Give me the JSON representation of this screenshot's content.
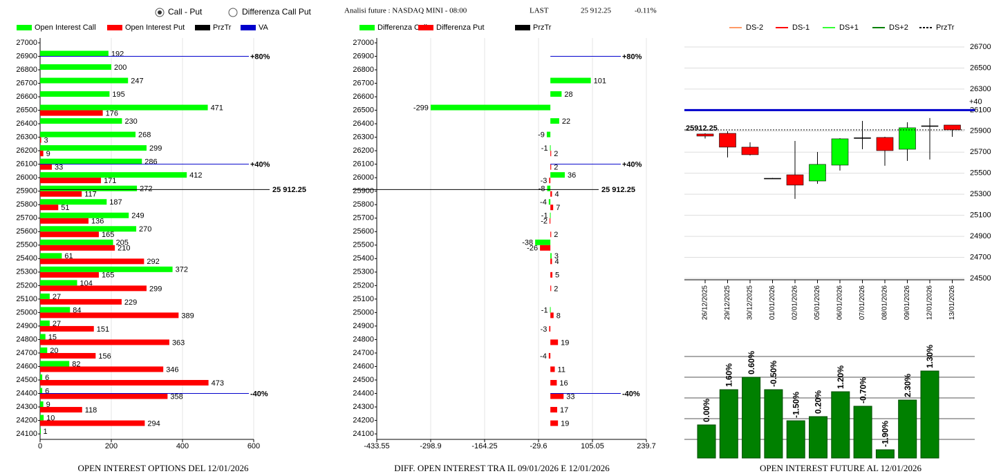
{
  "header": {
    "options": [
      "Call - Put",
      "Differenza Call Put"
    ],
    "selected": 0,
    "title": "Analisi future : NASDAQ MINI - 08:00",
    "last_label": "LAST",
    "last": "25 912.25",
    "change": "-0.11%"
  },
  "chart_data": [
    {
      "type": "hbar",
      "title": "OPEN INTEREST OPTIONS DEL 12/01/2026",
      "categories": [
        27000,
        26900,
        26800,
        26700,
        26600,
        26500,
        26400,
        26300,
        26200,
        26100,
        26000,
        25900,
        25800,
        25700,
        25600,
        25500,
        25400,
        25300,
        25200,
        25100,
        25000,
        24900,
        24800,
        24700,
        24600,
        24500,
        24400,
        24300,
        24200,
        24100
      ],
      "series": [
        {
          "name": "Open Interest Call",
          "color": "#00ff00",
          "values": [
            null,
            192,
            200,
            247,
            195,
            471,
            230,
            268,
            299,
            286,
            412,
            272,
            187,
            249,
            270,
            205,
            61,
            372,
            104,
            27,
            84,
            27,
            15,
            20,
            82,
            6,
            6,
            9,
            10,
            1
          ]
        },
        {
          "name": "Open Interest Put",
          "color": "#ff0000",
          "values": [
            null,
            null,
            null,
            null,
            null,
            176,
            null,
            3,
            9,
            33,
            171,
            117,
            51,
            136,
            165,
            210,
            292,
            165,
            299,
            229,
            389,
            151,
            363,
            156,
            346,
            473,
            358,
            118,
            294,
            null
          ]
        }
      ],
      "xlim": [
        0,
        600
      ],
      "xticks": [
        0,
        200,
        400,
        600
      ],
      "price": {
        "name": "PrzTr",
        "color": "#000000",
        "value": 25912.25,
        "label": "25 912.25"
      },
      "levels": {
        "name": "VA",
        "color": "#0000cc",
        "items": [
          {
            "value": 26900,
            "label": "+80%"
          },
          {
            "value": 26100,
            "label": "+40%"
          },
          {
            "value": 24400,
            "label": "-40%"
          }
        ]
      }
    },
    {
      "type": "hbar",
      "title": "DIFF. OPEN INTEREST TRA IL 09/01/2026 E 12/01/2026",
      "categories": [
        27000,
        26900,
        26800,
        26700,
        26600,
        26500,
        26400,
        26300,
        26200,
        26100,
        26000,
        25900,
        25800,
        25700,
        25600,
        25500,
        25400,
        25300,
        25200,
        25100,
        25000,
        24900,
        24800,
        24700,
        24600,
        24500,
        24400,
        24300,
        24200,
        24100
      ],
      "series": [
        {
          "name": "Differenza Call",
          "color": "#00ff00",
          "values": [
            null,
            null,
            null,
            101,
            28,
            -299,
            22,
            -9,
            -1,
            null,
            36,
            -8,
            -4,
            -1,
            null,
            -38,
            3,
            null,
            null,
            null,
            -1,
            null,
            null,
            null,
            null,
            null,
            null,
            null,
            null,
            null
          ]
        },
        {
          "name": "Differenza Put",
          "color": "#ff0000",
          "values": [
            null,
            null,
            null,
            null,
            null,
            null,
            null,
            null,
            2,
            2,
            -3,
            4,
            7,
            -2,
            2,
            -26,
            4,
            5,
            2,
            null,
            8,
            -3,
            19,
            -4,
            11,
            16,
            33,
            17,
            19,
            null
          ]
        }
      ],
      "xlim": [
        -433.55,
        239.7
      ],
      "xticks": [
        -433.55,
        -298.9,
        -164.25,
        -29.6,
        105.05,
        239.7
      ],
      "price": {
        "name": "PrzTr",
        "color": "#000000",
        "value": 25912.25,
        "label": "25 912.25"
      },
      "levels": {
        "color": "#0000cc",
        "items": [
          {
            "value": 26900,
            "label": "+80%"
          },
          {
            "value": 26100,
            "label": "+40%"
          },
          {
            "value": 24400,
            "label": "-40%"
          }
        ]
      }
    },
    {
      "type": "candlestick",
      "x": [
        "26/12/2025",
        "29/12/2025",
        "30/12/2025",
        "01/01/2026",
        "02/01/2026",
        "05/01/2026",
        "06/01/2026",
        "07/01/2026",
        "08/01/2026",
        "09/01/2026",
        "12/01/2026",
        "13/01/2026"
      ],
      "open": [
        25873,
        25879,
        25748,
        25452,
        25485,
        25426,
        25577,
        25837,
        25840,
        25728,
        25951,
        25958
      ],
      "high": [
        25880,
        25899,
        25794,
        25455,
        25807,
        25702,
        25833,
        25997,
        25846,
        25984,
        26024,
        25958
      ],
      "low": [
        25830,
        25650,
        25669,
        25450,
        25256,
        25400,
        25525,
        25728,
        25571,
        25617,
        25630,
        25846
      ],
      "close": [
        25853,
        25748,
        25676,
        25452,
        25387,
        25584,
        25827,
        25837,
        25715,
        25932,
        25951,
        25912.25
      ],
      "up_color": "#00ff00",
      "down_color": "#ff0000",
      "ylim": [
        24500,
        26700
      ],
      "yticks": [
        24500,
        24700,
        24900,
        25100,
        25300,
        25500,
        25700,
        25900,
        26100,
        26300,
        26500,
        26700
      ],
      "legend": [
        {
          "name": "DS-2",
          "color": "#ff9966"
        },
        {
          "name": "DS-1",
          "color": "#ff0000"
        },
        {
          "name": "DS+1",
          "color": "#33ff33"
        },
        {
          "name": "DS+2",
          "color": "#008000"
        },
        {
          "name": "PrzTr",
          "color": "#000000",
          "dash": true
        }
      ],
      "levels": {
        "color": "#0000cc",
        "items": [
          {
            "value": 26100,
            "label": "+40"
          }
        ]
      },
      "price": {
        "color": "#000000",
        "value": 25912.25,
        "label": "25912.25"
      }
    },
    {
      "type": "bar",
      "title": "OPEN INTEREST FUTURE AL 12/01/2026",
      "values": [
        1.6,
        3.3,
        3.9,
        3.3,
        1.8,
        2.0,
        3.2,
        2.5,
        0.4,
        2.8,
        4.2
      ],
      "bar_labels": [
        "0.00%",
        "1.60%",
        "0.60%",
        "-0.50%",
        "-1.50%",
        "0.20%",
        "1.20%",
        "-0.70%",
        "-1.90%",
        "2.30%",
        "1.30%"
      ],
      "color": "#008000",
      "ylim": [
        0,
        4.9
      ],
      "gridlines": [
        0.9,
        1.9,
        2.9,
        3.9,
        4.9
      ]
    }
  ]
}
